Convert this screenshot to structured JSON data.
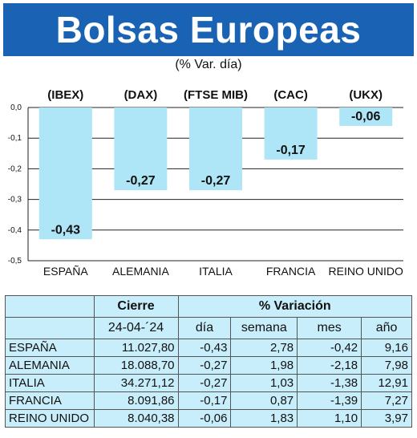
{
  "header": {
    "title": "Bolsas Europeas",
    "subtitle": "(% Var. día)"
  },
  "chart_data": {
    "type": "bar",
    "categories": [
      "ESPAÑA",
      "ALEMANIA",
      "ITALIA",
      "FRANCIA",
      "REINO UNIDO"
    ],
    "indices": [
      "(IBEX)",
      "(DAX)",
      "(FTSE MIB)",
      "(CAC)",
      "(UKX)"
    ],
    "values": [
      -0.43,
      -0.27,
      -0.27,
      -0.17,
      -0.06
    ],
    "value_labels": [
      "-0,43",
      "-0,27",
      "-0,27",
      "-0,17",
      "-0,06"
    ],
    "y_ticks": [
      0.0,
      -0.1,
      -0.2,
      -0.3,
      -0.4,
      -0.5
    ],
    "y_tick_labels": [
      "0,0",
      "-0,1",
      "-0,2",
      "-0,3",
      "-0,4",
      "-0,5"
    ],
    "ylim": [
      -0.5,
      0.0
    ],
    "grid": true,
    "bar_color": "#aee6f7"
  },
  "table": {
    "group_headers": {
      "cierre": "Cierre",
      "variacion": "% Variación"
    },
    "column_headers": {
      "date": "24-04-´24",
      "dia": "día",
      "semana": "semana",
      "mes": "mes",
      "ano": "año"
    },
    "rows": [
      {
        "country": "ESPAÑA",
        "cierre": "11.027,80",
        "dia": "-0,43",
        "semana": "2,78",
        "mes": "-0,42",
        "ano": "9,16"
      },
      {
        "country": "ALEMANIA",
        "cierre": "18.088,70",
        "dia": "-0,27",
        "semana": "1,98",
        "mes": "-2,18",
        "ano": "7,98"
      },
      {
        "country": "ITALIA",
        "cierre": "34.271,12",
        "dia": "-0,27",
        "semana": "1,03",
        "mes": "-1,38",
        "ano": "12,91"
      },
      {
        "country": "FRANCIA",
        "cierre": "8.091,86",
        "dia": "-0,17",
        "semana": "0,87",
        "mes": "-1,39",
        "ano": "7,27"
      },
      {
        "country": "REINO UNIDO",
        "cierre": "8.040,38",
        "dia": "-0,06",
        "semana": "1,83",
        "mes": "1,10",
        "ano": "3,97"
      }
    ]
  }
}
